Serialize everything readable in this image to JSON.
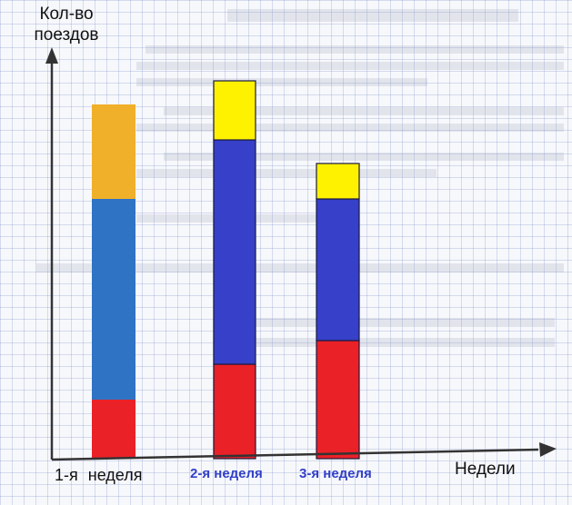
{
  "chart_data": {
    "type": "bar",
    "stacked": true,
    "ylabel": "Кол-во поездов",
    "xlabel": "Недели",
    "categories": [
      "1-я неделя",
      "2-я неделя",
      "3-я неделя"
    ],
    "category_colors": [
      "#111111",
      "#3340c8",
      "#3340c8"
    ],
    "ylim": [
      0,
      33
    ],
    "grid": true,
    "series": [
      {
        "color": "#ea2127",
        "values": [
          5,
          8,
          10
        ]
      },
      {
        "color": "#2f73c4",
        "values": [
          17,
          0,
          0
        ]
      },
      {
        "color": "#3740c9",
        "values": [
          0,
          19,
          12
        ]
      },
      {
        "color": "#f0b02a",
        "values": [
          8,
          0,
          0
        ]
      },
      {
        "color": "#fff200",
        "values": [
          0,
          5,
          3
        ]
      }
    ],
    "axis_color": "#333333"
  }
}
